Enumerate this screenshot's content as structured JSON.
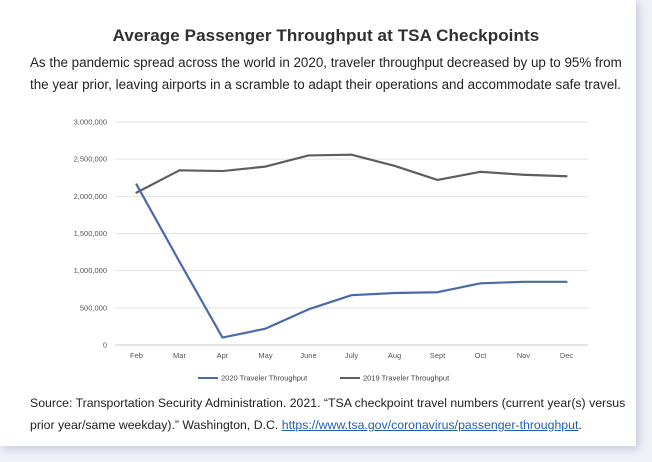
{
  "card": {
    "title": "Average Passenger Throughput  at TSA Checkpoints",
    "subtitle": "As the pandemic spread across the world in 2020, traveler throughput decreased by up to 95% from the year prior, leaving airports in a scramble to adapt their operations and accommodate safe travel.",
    "source_text": "Source: Transportation Security Administration. 2021. “TSA checkpoint travel numbers (current year(s) versus prior year/same weekday).” Washington, D.C. ",
    "source_link": "https://www.tsa.gov/coronavirus/passenger-throughput",
    "source_end": "."
  },
  "chart_data": {
    "type": "line",
    "title": "",
    "xlabel": "",
    "ylabel": "",
    "categories": [
      "Feb",
      "Mar",
      "Apr",
      "May",
      "June",
      "July",
      "Aug",
      "Sept",
      "Oct",
      "Nov",
      "Dec"
    ],
    "ylim": [
      0,
      3000000
    ],
    "yticks": [
      0,
      500000,
      1000000,
      1500000,
      2000000,
      2500000,
      3000000
    ],
    "ytick_labels": [
      "0",
      "500,000",
      "1,000,000",
      "1,500,000",
      "2,000,000",
      "2,500,000",
      "3,000,000"
    ],
    "grid": true,
    "legend_position": "bottom",
    "series": [
      {
        "name": "2020 Traveler Throughput",
        "color": "#4a6aab",
        "values": [
          2160000,
          1120000,
          100000,
          220000,
          480000,
          670000,
          700000,
          710000,
          830000,
          850000,
          850000
        ]
      },
      {
        "name": "2019 Traveler Throughput",
        "color": "#5e5e5e",
        "values": [
          2050000,
          2350000,
          2340000,
          2400000,
          2550000,
          2560000,
          2410000,
          2220000,
          2330000,
          2290000,
          2270000
        ]
      }
    ]
  }
}
